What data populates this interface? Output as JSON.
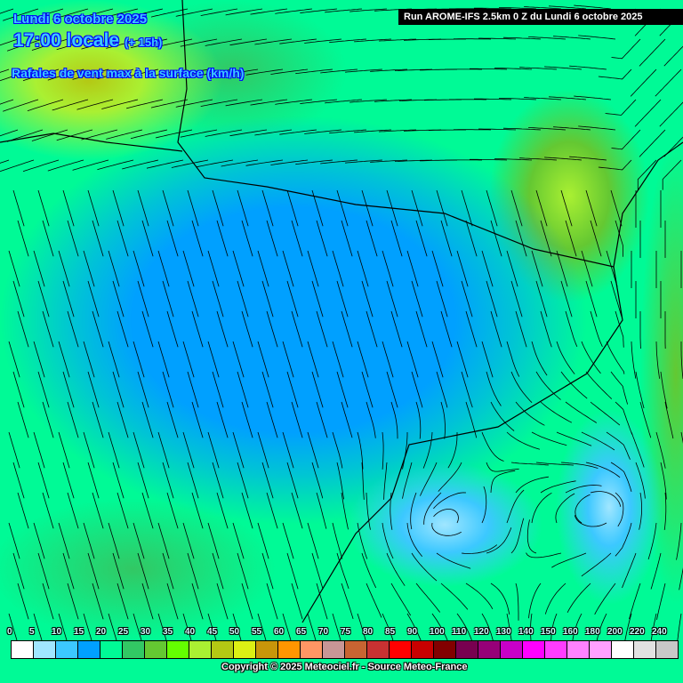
{
  "header": {
    "date": "Lundi 6 octobre 2025",
    "time": "17:00 locale",
    "lead": "(+ 15h)",
    "parameter": "Rafales de vent max à la surface (km/h)",
    "run": "Run AROME-IFS 2.5km 0 Z du Lundi 6 octobre 2025"
  },
  "legend": {
    "unit": "km/h",
    "items": [
      {
        "label": "0",
        "color": "#ffffff"
      },
      {
        "label": "5",
        "color": "#a0e6ff"
      },
      {
        "label": "10",
        "color": "#3cc8ff"
      },
      {
        "label": "15",
        "color": "#00a0ff"
      },
      {
        "label": "20",
        "color": "#00fa96"
      },
      {
        "label": "25",
        "color": "#32c864"
      },
      {
        "label": "30",
        "color": "#64c832"
      },
      {
        "label": "35",
        "color": "#64ff00"
      },
      {
        "label": "40",
        "color": "#aaf032"
      },
      {
        "label": "45",
        "color": "#b4c814"
      },
      {
        "label": "50",
        "color": "#dcf014"
      },
      {
        "label": "55",
        "color": "#c8960a"
      },
      {
        "label": "60",
        "color": "#ff9600"
      },
      {
        "label": "65",
        "color": "#ff9664"
      },
      {
        "label": "70",
        "color": "#c89696"
      },
      {
        "label": "75",
        "color": "#c86432"
      },
      {
        "label": "80",
        "color": "#c83232"
      },
      {
        "label": "85",
        "color": "#ff0000"
      },
      {
        "label": "90",
        "color": "#c80000"
      },
      {
        "label": "100",
        "color": "#820000"
      },
      {
        "label": "110",
        "color": "#780050"
      },
      {
        "label": "120",
        "color": "#960078"
      },
      {
        "label": "130",
        "color": "#c800c8"
      },
      {
        "label": "140",
        "color": "#ff00ff"
      },
      {
        "label": "150",
        "color": "#ff3cff"
      },
      {
        "label": "160",
        "color": "#ff82ff"
      },
      {
        "label": "180",
        "color": "#ffa0ff"
      },
      {
        "label": "200",
        "color": "#ffffff"
      },
      {
        "label": "220",
        "color": "#e1e1e1"
      },
      {
        "label": "240",
        "color": "#c8c8c8"
      }
    ]
  },
  "footer": {
    "copyright": "Copyright © 2025 Meteociel.fr - Source Meteo-France"
  }
}
